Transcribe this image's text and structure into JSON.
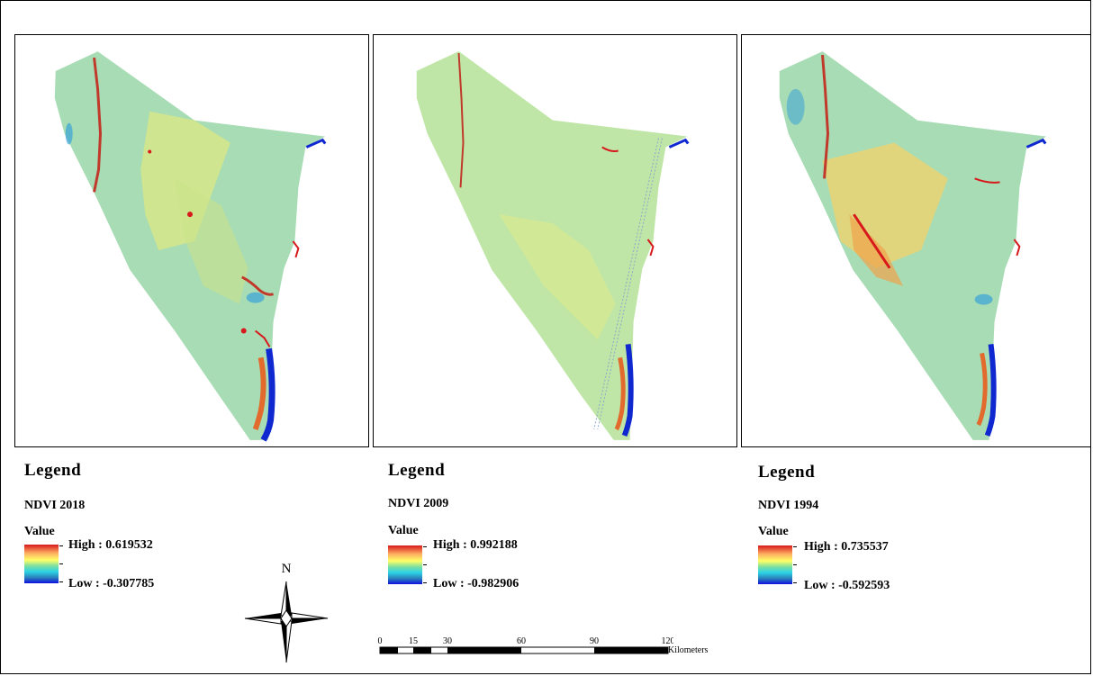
{
  "maps": [
    {
      "legend_title": "Legend",
      "layer_name": "NDVI 2018",
      "value_label": "Value",
      "high_label": "High : 0.619532",
      "low_label": "Low : -0.307785"
    },
    {
      "legend_title": "Legend",
      "layer_name": "NDVI 2009",
      "value_label": "Value",
      "high_label": "High : 0.992188",
      "low_label": "Low : -0.982906"
    },
    {
      "legend_title": "Legend",
      "layer_name": "NDVI 1994",
      "value_label": "Value",
      "high_label": "High : 0.735537",
      "low_label": "Low : -0.592593"
    }
  ],
  "north_arrow": {
    "label": "N"
  },
  "scale_bar": {
    "ticks": [
      "0",
      "15",
      "30",
      "60",
      "90",
      "120"
    ],
    "units": "Kilometers"
  },
  "colors": {
    "ramp_high": "#d7191c",
    "ramp_mid": "#ffff66",
    "ramp_low": "#1010e0",
    "land_base": "#a8dcb4",
    "water": "#1028d0"
  }
}
